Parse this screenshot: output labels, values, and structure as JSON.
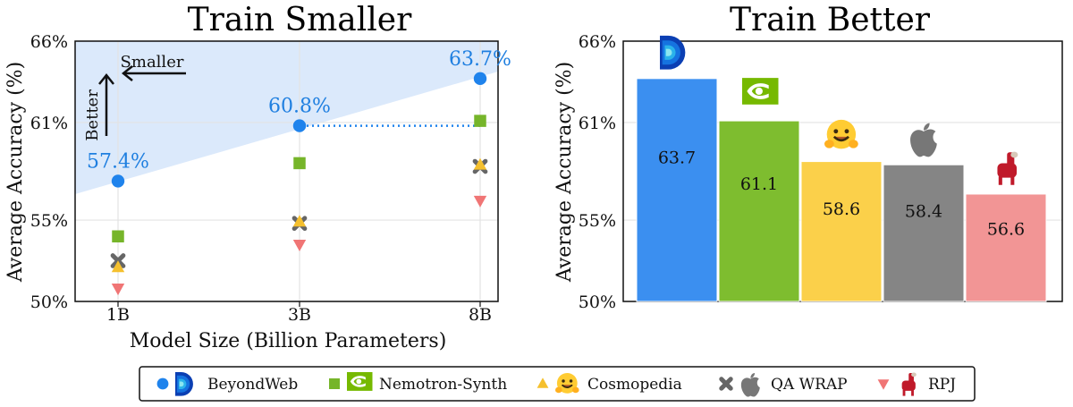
{
  "chart_data": [
    {
      "type": "scatter",
      "title": "Train Smaller",
      "xlabel": "Model Size (Billion Parameters)",
      "ylabel": "Average Accuracy (%)",
      "categories": [
        "1B",
        "3B",
        "8B"
      ],
      "yticks": [
        "50%",
        "55%",
        "61%",
        "66%"
      ],
      "ylim": [
        50,
        66
      ],
      "series": [
        {
          "name": "BeyondWeb",
          "values": [
            57.4,
            60.8,
            63.7
          ],
          "marker": "circle",
          "color": "#1f83ec",
          "labels": [
            "57.4%",
            "60.8%",
            "63.7%"
          ]
        },
        {
          "name": "Nemotron-Synth",
          "values": [
            54.0,
            58.5,
            61.1
          ],
          "marker": "square",
          "color": "#76b52a"
        },
        {
          "name": "Cosmopedia",
          "values": [
            52.1,
            54.9,
            58.4
          ],
          "marker": "triangle-up",
          "color": "#f5c02e"
        },
        {
          "name": "QA WRAP",
          "values": [
            52.5,
            54.8,
            58.3
          ],
          "marker": "x",
          "color": "#666666"
        },
        {
          "name": "RPJ",
          "values": [
            50.8,
            53.5,
            56.2
          ],
          "marker": "triangle-down",
          "color": "#f07575"
        }
      ],
      "annotations": {
        "smaller": "Smaller",
        "better": "Better"
      }
    },
    {
      "type": "bar",
      "title": "Train Better",
      "ylabel": "Average Accuracy (%)",
      "yticks": [
        "50%",
        "55%",
        "61%",
        "66%"
      ],
      "ylim": [
        50,
        66
      ],
      "categories": [
        "BeyondWeb",
        "Nemotron-Synth",
        "Cosmopedia",
        "QA WRAP",
        "RPJ"
      ],
      "values": [
        63.7,
        61.1,
        58.6,
        58.4,
        56.6
      ],
      "labels": [
        "63.7",
        "61.1",
        "58.6",
        "58.4",
        "56.6"
      ],
      "colors": [
        "#3b8ff0",
        "#7ebd2f",
        "#fbd04a",
        "#858585",
        "#f29595"
      ],
      "icons": [
        "beyondweb-logo-icon",
        "nvidia-logo-icon",
        "hugging-face-icon",
        "apple-logo-icon",
        "llama-icon"
      ]
    }
  ],
  "legend": [
    {
      "label": "BeyondWeb",
      "marker": "circle",
      "icon": "beyondweb-logo-icon"
    },
    {
      "label": "Nemotron-Synth",
      "marker": "square",
      "icon": "nvidia-logo-icon"
    },
    {
      "label": "Cosmopedia",
      "marker": "triangle-up",
      "icon": "hugging-face-icon"
    },
    {
      "label": "QA WRAP",
      "marker": "x",
      "icon": "apple-logo-icon"
    },
    {
      "label": "RPJ",
      "marker": "triangle-down",
      "icon": "llama-icon"
    }
  ]
}
